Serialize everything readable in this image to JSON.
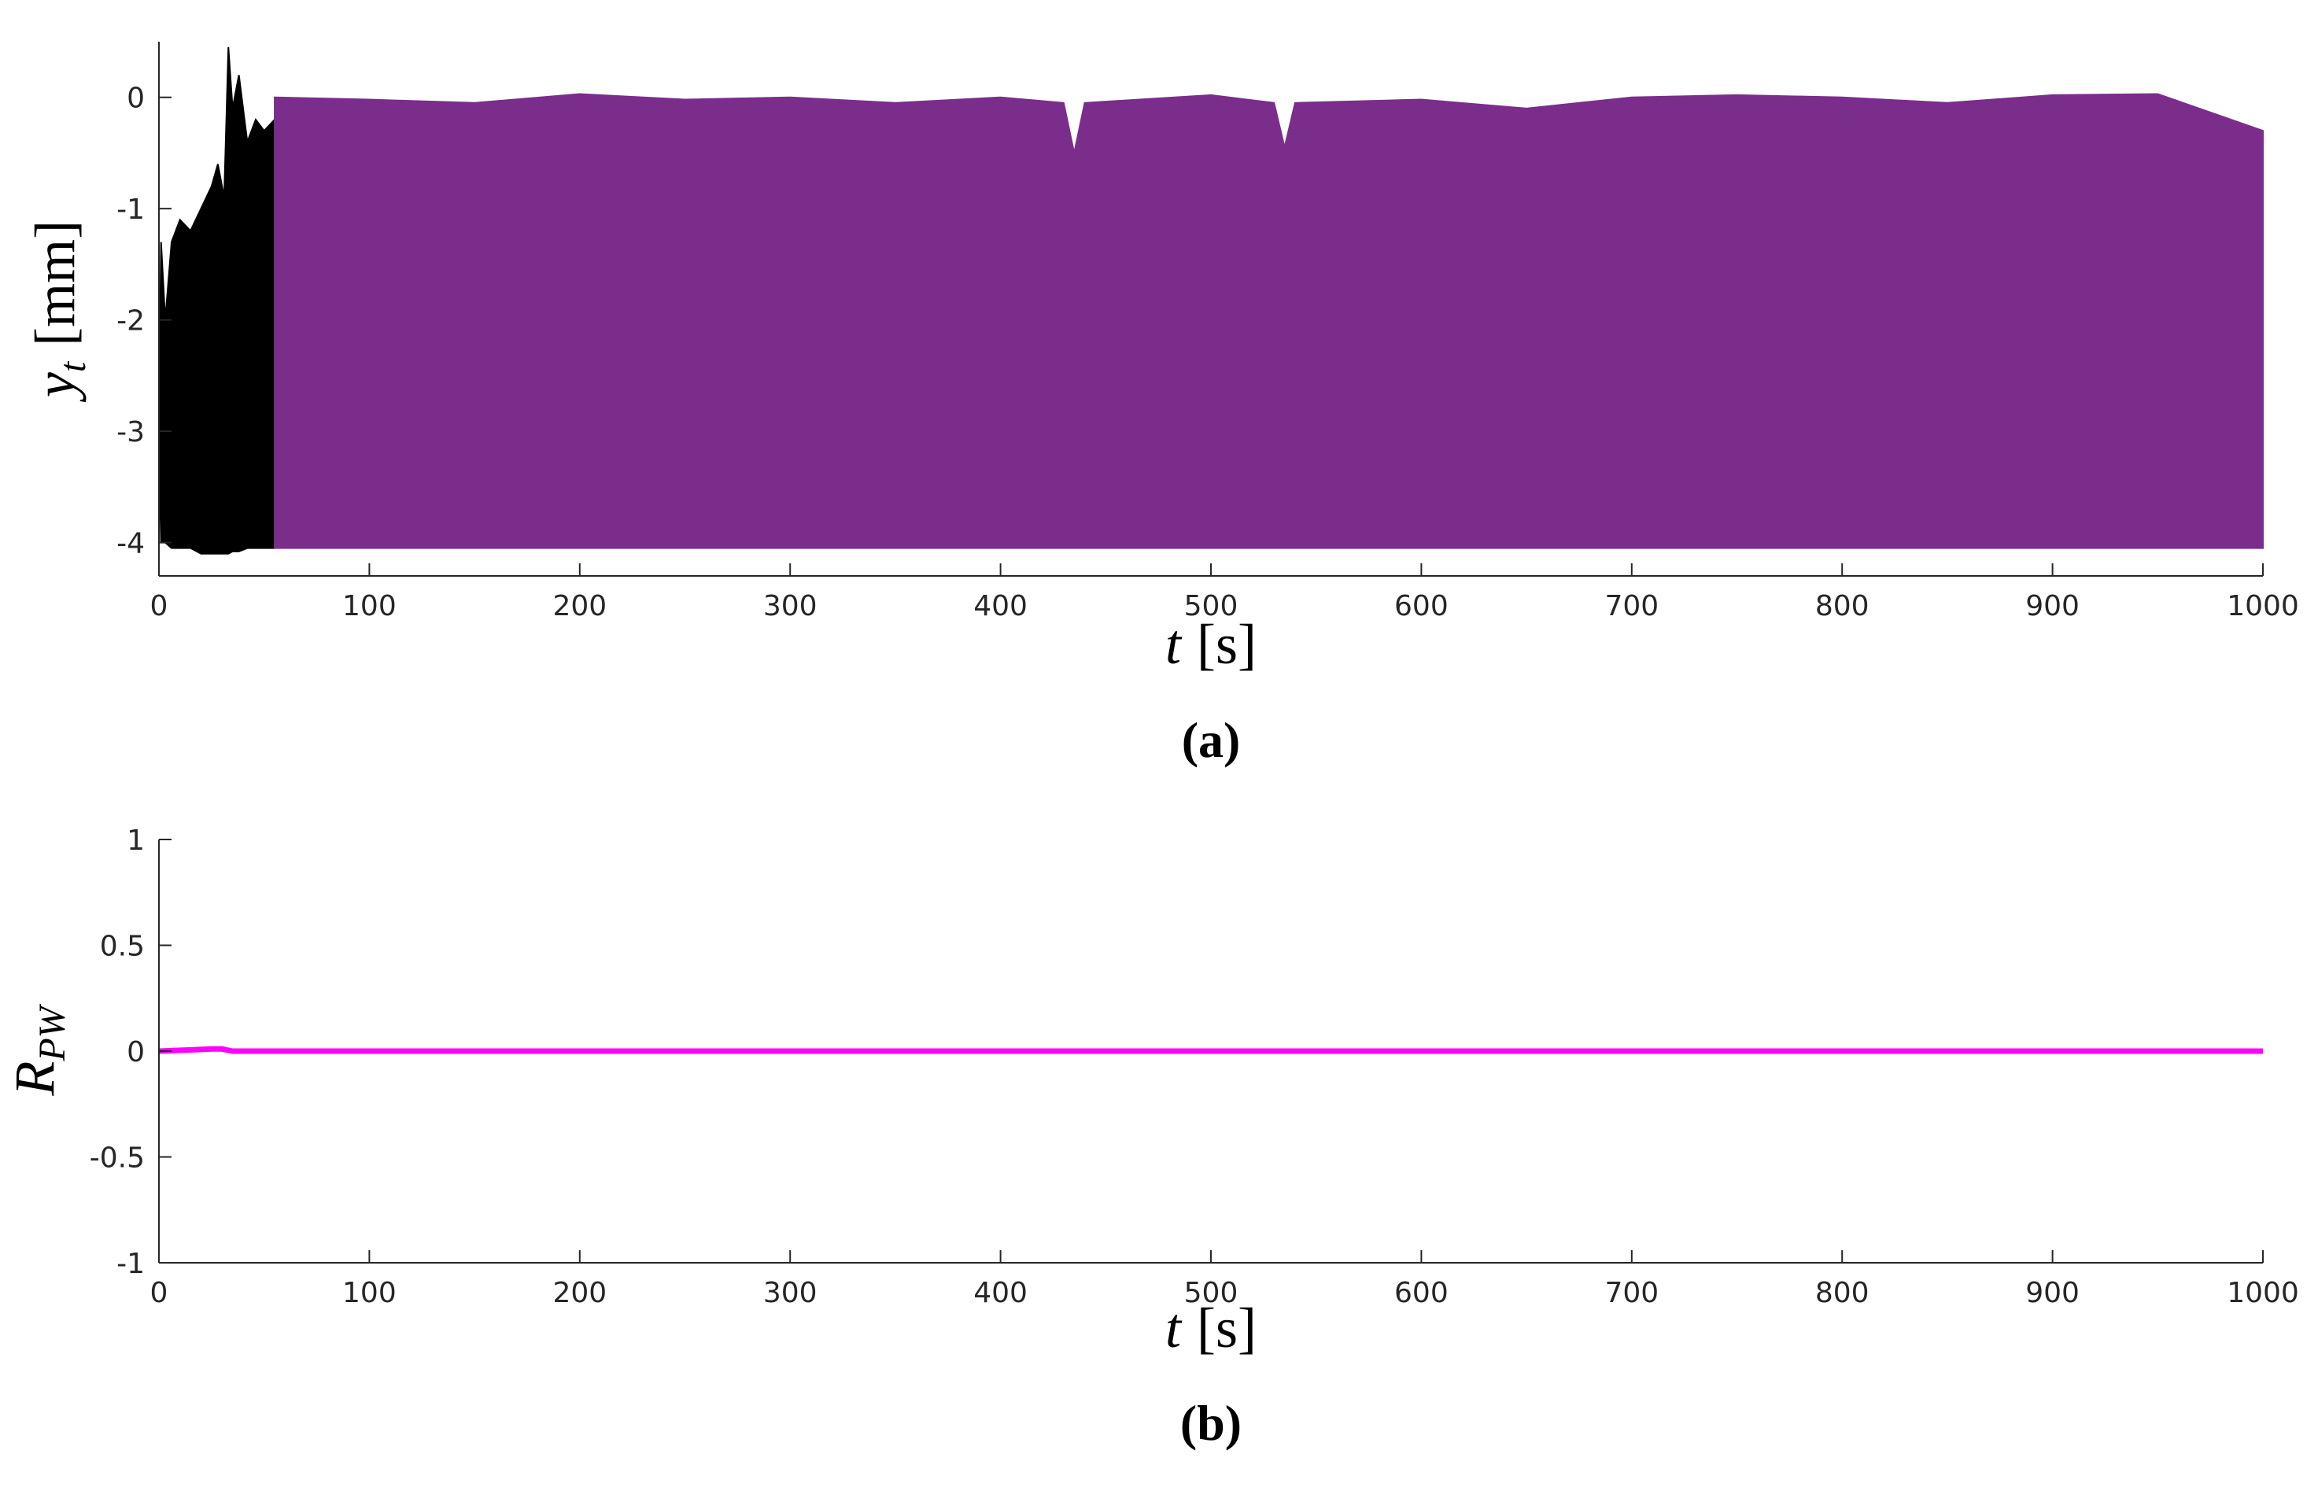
{
  "chart_data": [
    {
      "type": "band",
      "caption": "(a)",
      "x_label": {
        "var": "t",
        "unit": "[s]"
      },
      "y_label": {
        "var": "y",
        "sub": "t",
        "unit": "[mm]"
      },
      "xlim": [
        0,
        1000
      ],
      "xticks": [
        0,
        100,
        200,
        300,
        400,
        500,
        600,
        700,
        800,
        900,
        1000
      ],
      "ylim": [
        -4.3,
        0.5
      ],
      "yticks": [
        0,
        -1,
        -2,
        -3,
        -4
      ],
      "series": [
        {
          "color": "#000000",
          "x": [
            0,
            1,
            3,
            6,
            10,
            15,
            20,
            25,
            28,
            31,
            33,
            35,
            38,
            42,
            46,
            50,
            55
          ],
          "upper": [
            -3.0,
            -1.3,
            -2.0,
            -1.3,
            -1.1,
            -1.2,
            -1.0,
            -0.8,
            -0.6,
            -0.9,
            0.45,
            -0.1,
            0.2,
            -0.4,
            -0.2,
            -0.3,
            -0.2
          ],
          "lower": [
            -3.1,
            -4.0,
            -4.0,
            -4.05,
            -4.05,
            -4.05,
            -4.1,
            -4.1,
            -4.1,
            -4.1,
            -4.1,
            -4.08,
            -4.08,
            -4.05,
            -4.05,
            -4.05,
            -4.05
          ]
        },
        {
          "color": "#7b2d8b",
          "x": [
            55,
            100,
            150,
            200,
            250,
            300,
            350,
            400,
            430,
            435,
            440,
            500,
            530,
            535,
            540,
            600,
            650,
            700,
            750,
            800,
            850,
            900,
            950,
            1000
          ],
          "upper": [
            0.0,
            -0.02,
            -0.05,
            0.03,
            -0.02,
            0.0,
            -0.05,
            0.0,
            -0.05,
            -0.5,
            -0.05,
            0.02,
            -0.05,
            -0.45,
            -0.05,
            -0.02,
            -0.1,
            0.0,
            0.02,
            0.0,
            -0.05,
            0.02,
            0.03,
            -0.3
          ],
          "lower": [
            -4.05,
            -4.05,
            -4.05,
            -4.05,
            -4.05,
            -4.05,
            -4.05,
            -4.05,
            -4.05,
            -4.05,
            -4.05,
            -4.05,
            -4.05,
            -4.05,
            -4.05,
            -4.05,
            -4.05,
            -4.05,
            -4.05,
            -4.05,
            -4.05,
            -4.05,
            -4.05,
            -4.05
          ]
        }
      ]
    },
    {
      "type": "line",
      "caption": "(b)",
      "x_label": {
        "var": "t",
        "unit": "[s]"
      },
      "y_label": {
        "var": "R",
        "sub": "PW"
      },
      "xlim": [
        0,
        1000
      ],
      "xticks": [
        0,
        100,
        200,
        300,
        400,
        500,
        600,
        700,
        800,
        900,
        1000
      ],
      "ylim": [
        -1,
        1
      ],
      "yticks": [
        1,
        0.5,
        0,
        -0.5,
        -1
      ],
      "series": [
        {
          "color": "#ff00ff",
          "x": [
            0,
            25,
            30,
            35,
            1000
          ],
          "values": [
            0,
            0.01,
            0.01,
            0,
            0
          ]
        }
      ]
    }
  ]
}
